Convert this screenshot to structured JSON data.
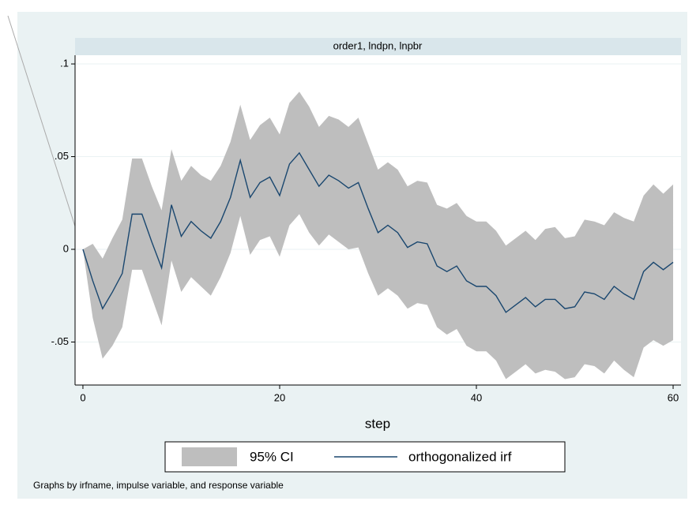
{
  "chart_data": {
    "type": "irf-band",
    "strip_title": "order1, lndpn, lnpbr",
    "x_label": "step",
    "note": "Graphs by irfname, impulse variable, and response variable",
    "x": [
      0,
      1,
      2,
      3,
      4,
      5,
      6,
      7,
      8,
      9,
      10,
      11,
      12,
      13,
      14,
      15,
      16,
      17,
      18,
      19,
      20,
      21,
      22,
      23,
      24,
      25,
      26,
      27,
      28,
      29,
      30,
      31,
      32,
      33,
      34,
      35,
      36,
      37,
      38,
      39,
      40,
      41,
      42,
      43,
      44,
      45,
      46,
      47,
      48,
      49,
      50,
      51,
      52,
      53,
      54,
      55,
      56,
      57,
      58,
      59,
      60
    ],
    "series": [
      {
        "name": "95% CI",
        "color": "#bebebe",
        "upper": [
          0,
          0.003,
          -0.005,
          0.006,
          0.016,
          0.049,
          0.049,
          0.034,
          0.021,
          0.054,
          0.037,
          0.045,
          0.04,
          0.037,
          0.045,
          0.058,
          0.078,
          0.059,
          0.067,
          0.071,
          0.062,
          0.079,
          0.085,
          0.077,
          0.066,
          0.072,
          0.07,
          0.066,
          0.071,
          0.057,
          0.043,
          0.047,
          0.043,
          0.034,
          0.037,
          0.036,
          0.024,
          0.022,
          0.025,
          0.018,
          0.015,
          0.015,
          0.01,
          0.002,
          0.006,
          0.01,
          0.005,
          0.011,
          0.012,
          0.006,
          0.007,
          0.016,
          0.015,
          0.013,
          0.02,
          0.017,
          0.015,
          0.029,
          0.035,
          0.03,
          0.035
        ],
        "lower": [
          0,
          -0.037,
          -0.059,
          -0.052,
          -0.042,
          -0.011,
          -0.011,
          -0.026,
          -0.041,
          -0.006,
          -0.023,
          -0.015,
          -0.02,
          -0.025,
          -0.015,
          -0.002,
          0.018,
          -0.003,
          0.005,
          0.007,
          -0.004,
          0.013,
          0.019,
          0.009,
          0.002,
          0.008,
          0.004,
          0.0,
          0.001,
          -0.013,
          -0.025,
          -0.021,
          -0.025,
          -0.032,
          -0.029,
          -0.03,
          -0.042,
          -0.046,
          -0.043,
          -0.052,
          -0.055,
          -0.055,
          -0.06,
          -0.07,
          -0.066,
          -0.062,
          -0.067,
          -0.065,
          -0.066,
          -0.07,
          -0.069,
          -0.062,
          -0.063,
          -0.067,
          -0.06,
          -0.065,
          -0.069,
          -0.053,
          -0.049,
          -0.052,
          -0.049
        ]
      },
      {
        "name": "orthogonalized irf",
        "color": "#1a476f",
        "values": [
          0,
          -0.017,
          -0.032,
          -0.023,
          -0.013,
          0.019,
          0.019,
          0.004,
          -0.01,
          0.024,
          0.007,
          0.015,
          0.01,
          0.006,
          0.015,
          0.028,
          0.048,
          0.028,
          0.036,
          0.039,
          0.029,
          0.046,
          0.052,
          0.043,
          0.034,
          0.04,
          0.037,
          0.033,
          0.036,
          0.022,
          0.009,
          0.013,
          0.009,
          0.001,
          0.004,
          0.003,
          -0.009,
          -0.012,
          -0.009,
          -0.017,
          -0.02,
          -0.02,
          -0.025,
          -0.034,
          -0.03,
          -0.026,
          -0.031,
          -0.027,
          -0.027,
          -0.032,
          -0.031,
          -0.023,
          -0.024,
          -0.027,
          -0.02,
          -0.024,
          -0.027,
          -0.012,
          -0.007,
          -0.011,
          -0.007
        ]
      }
    ],
    "xlim": [
      -0.8,
      60.8
    ],
    "xticks": [
      0,
      20,
      40,
      60
    ],
    "ylim": [
      -0.0732,
      0.1047
    ],
    "yticks": [
      {
        "value": -0.05,
        "label": "-.05"
      },
      0,
      {
        "value": 0.05,
        "label": ".05"
      },
      {
        "value": 0.1,
        "label": ".1"
      }
    ],
    "grid": true
  }
}
